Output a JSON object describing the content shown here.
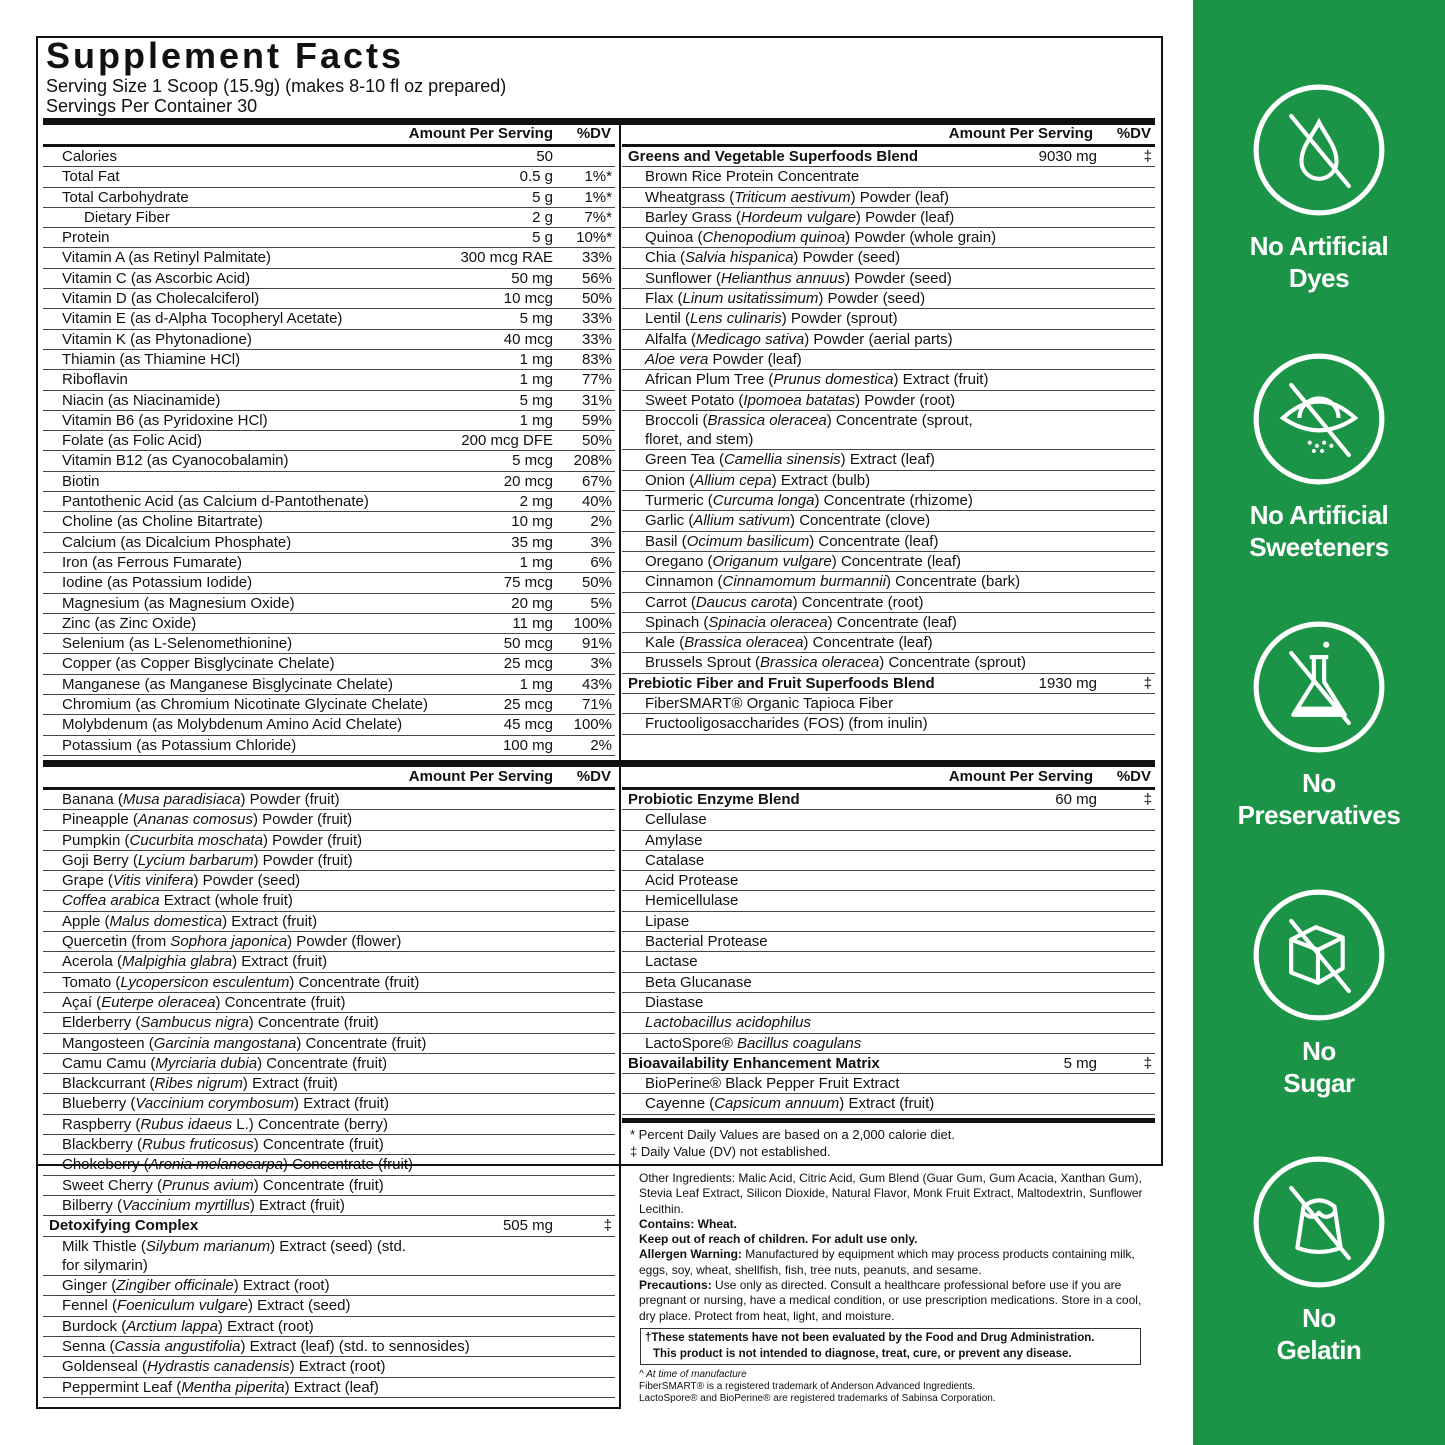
{
  "title": "Supplement Facts",
  "serving_size": "Serving Size 1 Scoop (15.9g) (makes 8-10 fl oz prepared)",
  "servings_per_container": "Servings Per Container 30",
  "header": {
    "amount": "Amount Per Serving",
    "dv": "%DV"
  },
  "tl": {
    "rows": [
      {
        "n": [
          "Calories"
        ],
        "a": "50",
        "d": ""
      },
      {
        "n": [
          "Total Fat"
        ],
        "a": "0.5 g",
        "d": "1%*"
      },
      {
        "n": [
          "Total Carbohydrate"
        ],
        "a": "5 g",
        "d": "1%*"
      },
      {
        "n": [
          "Dietary Fiber"
        ],
        "a": "2 g",
        "d": "7%*",
        "ind2": true
      },
      {
        "n": [
          "Protein"
        ],
        "a": "5 g",
        "d": "10%*"
      },
      {
        "n": [
          "Vitamin A (as Retinyl Palmitate)"
        ],
        "a": "300 mcg RAE",
        "d": "33%"
      },
      {
        "n": [
          "Vitamin C (as Ascorbic Acid)"
        ],
        "a": "50 mg",
        "d": "56%"
      },
      {
        "n": [
          "Vitamin D (as Cholecalciferol)"
        ],
        "a": "10 mcg",
        "d": "50%"
      },
      {
        "n": [
          "Vitamin E (as d-Alpha Tocopheryl Acetate)"
        ],
        "a": "5 mg",
        "d": "33%"
      },
      {
        "n": [
          "Vitamin K (as Phytonadione)"
        ],
        "a": "40 mcg",
        "d": "33%"
      },
      {
        "n": [
          "Thiamin (as Thiamine HCl)"
        ],
        "a": "1 mg",
        "d": "83%"
      },
      {
        "n": [
          "Riboflavin"
        ],
        "a": "1 mg",
        "d": "77%"
      },
      {
        "n": [
          "Niacin (as Niacinamide)"
        ],
        "a": "5 mg",
        "d": "31%"
      },
      {
        "n": [
          "Vitamin B6 (as Pyridoxine HCl)"
        ],
        "a": "1 mg",
        "d": "59%"
      },
      {
        "n": [
          "Folate (as Folic Acid)"
        ],
        "a": "200 mcg DFE",
        "d": "50%"
      },
      {
        "n": [
          "Vitamin B12 (as Cyanocobalamin)"
        ],
        "a": "5 mcg",
        "d": "208%"
      },
      {
        "n": [
          "Biotin"
        ],
        "a": "20 mcg",
        "d": "67%"
      },
      {
        "n": [
          "Pantothenic Acid (as Calcium d-Pantothenate)"
        ],
        "a": "2 mg",
        "d": "40%"
      },
      {
        "n": [
          "Choline (as Choline Bitartrate)"
        ],
        "a": "10 mg",
        "d": "2%"
      },
      {
        "n": [
          "Calcium (as Dicalcium Phosphate)"
        ],
        "a": "35 mg",
        "d": "3%"
      },
      {
        "n": [
          "Iron (as Ferrous Fumarate)"
        ],
        "a": "1 mg",
        "d": "6%"
      },
      {
        "n": [
          "Iodine (as Potassium Iodide)"
        ],
        "a": "75 mcg",
        "d": "50%"
      },
      {
        "n": [
          "Magnesium (as Magnesium Oxide)"
        ],
        "a": "20 mg",
        "d": "5%"
      },
      {
        "n": [
          "Zinc (as Zinc Oxide)"
        ],
        "a": "11 mg",
        "d": "100%"
      },
      {
        "n": [
          "Selenium (as L-Selenomethionine)"
        ],
        "a": "50 mcg",
        "d": "91%"
      },
      {
        "n": [
          "Copper (as Copper Bisglycinate Chelate)"
        ],
        "a": "25 mcg",
        "d": "3%"
      },
      {
        "n": [
          "Manganese (as Manganese Bisglycinate Chelate)"
        ],
        "a": "1 mg",
        "d": "43%"
      },
      {
        "n": [
          "Chromium (as Chromium Nicotinate Glycinate Chelate)"
        ],
        "a": "25 mcg",
        "d": "71%"
      },
      {
        "n": [
          "Molybdenum (as Molybdenum Amino Acid Chelate)"
        ],
        "a": "45 mcg",
        "d": "100%"
      },
      {
        "n": [
          "Potassium (as Potassium Chloride)"
        ],
        "a": "100 mg",
        "d": "2%"
      }
    ]
  },
  "tr": {
    "rows": [
      {
        "n": [
          "Greens and Vegetable Superfoods Blend"
        ],
        "a": "9030 mg",
        "d": "‡",
        "blend": true
      },
      {
        "n": [
          "Brown Rice Protein Concentrate"
        ]
      },
      {
        "n": [
          "Wheatgrass (",
          "Triticum aestivum",
          ") Powder (leaf)"
        ]
      },
      {
        "n": [
          "Barley Grass (",
          "Hordeum vulgare",
          ") Powder (leaf)"
        ]
      },
      {
        "n": [
          "Quinoa (",
          "Chenopodium quinoa",
          ") Powder (whole grain)"
        ]
      },
      {
        "n": [
          "Chia (",
          "Salvia hispanica",
          ") Powder (seed)"
        ]
      },
      {
        "n": [
          "Sunflower (",
          "Helianthus annuus",
          ") Powder (seed)"
        ]
      },
      {
        "n": [
          "Flax (",
          "Linum usitatissimum",
          ") Powder (seed)"
        ]
      },
      {
        "n": [
          "Lentil (",
          "Lens culinaris",
          ") Powder (sprout)"
        ]
      },
      {
        "n": [
          "Alfalfa (",
          "Medicago sativa",
          ") Powder (aerial parts)"
        ]
      },
      {
        "n": [
          "",
          "Aloe vera",
          " Powder (leaf)"
        ]
      },
      {
        "n": [
          "African Plum Tree (",
          "Prunus domestica",
          ") Extract (fruit)"
        ]
      },
      {
        "n": [
          "Sweet Potato (",
          "Ipomoea batatas",
          ") Powder (root)"
        ]
      },
      {
        "n": [
          "Broccoli (",
          "Brassica oleracea",
          ") Concentrate (sprout, floret, and stem)"
        ],
        "wrap": true
      },
      {
        "n": [
          "Green Tea (",
          "Camellia sinensis",
          ") Extract (leaf)"
        ]
      },
      {
        "n": [
          "Onion (",
          "Allium cepa",
          ") Extract (bulb)"
        ]
      },
      {
        "n": [
          "Turmeric (",
          "Curcuma longa",
          ") Concentrate (rhizome)"
        ]
      },
      {
        "n": [
          "Garlic (",
          "Allium sativum",
          ") Concentrate (clove)"
        ]
      },
      {
        "n": [
          "Basil (",
          "Ocimum basilicum",
          ") Concentrate (leaf)"
        ]
      },
      {
        "n": [
          "Oregano (",
          "Origanum vulgare",
          ") Concentrate (leaf)"
        ]
      },
      {
        "n": [
          "Cinnamon (",
          "Cinnamomum burmannii",
          ") Concentrate (bark)"
        ]
      },
      {
        "n": [
          "Carrot (",
          "Daucus carota",
          ") Concentrate (root)"
        ]
      },
      {
        "n": [
          "Spinach (",
          "Spinacia oleracea",
          ") Concentrate (leaf)"
        ]
      },
      {
        "n": [
          "Kale (",
          "Brassica oleracea",
          ") Concentrate (leaf)"
        ]
      },
      {
        "n": [
          "Brussels Sprout (",
          "Brassica oleracea",
          ") Concentrate (sprout)"
        ]
      },
      {
        "n": [
          "Prebiotic Fiber and Fruit Superfoods Blend"
        ],
        "a": "1930 mg",
        "d": "‡",
        "blend": true
      },
      {
        "n": [
          "FiberSMART® Organic Tapioca Fiber"
        ]
      },
      {
        "n": [
          "Fructooligosaccharides (FOS) (from inulin)"
        ]
      }
    ]
  },
  "bl": {
    "rows": [
      {
        "n": [
          "Banana (",
          "Musa paradisiaca",
          ") Powder (fruit)"
        ]
      },
      {
        "n": [
          "Pineapple (",
          "Ananas comosus",
          ") Powder (fruit)"
        ]
      },
      {
        "n": [
          "Pumpkin (",
          "Cucurbita moschata",
          ") Powder (fruit)"
        ]
      },
      {
        "n": [
          "Goji Berry (",
          "Lycium barbarum",
          ") Powder (fruit)"
        ]
      },
      {
        "n": [
          "Grape (",
          "Vitis vinifera",
          ") Powder (seed)"
        ]
      },
      {
        "n": [
          "",
          "Coffea arabica",
          " Extract (whole fruit)"
        ]
      },
      {
        "n": [
          "Apple (",
          "Malus domestica",
          ") Extract (fruit)"
        ]
      },
      {
        "n": [
          "Quercetin (from ",
          "Sophora japonica",
          ") Powder (flower)"
        ]
      },
      {
        "n": [
          "Acerola (",
          "Malpighia glabra",
          ") Extract (fruit)"
        ]
      },
      {
        "n": [
          "Tomato (",
          "Lycopersicon esculentum",
          ") Concentrate (fruit)"
        ]
      },
      {
        "n": [
          "Açaí (",
          "Euterpe oleracea",
          ") Concentrate (fruit)"
        ]
      },
      {
        "n": [
          "Elderberry (",
          "Sambucus nigra",
          ") Concentrate (fruit)"
        ]
      },
      {
        "n": [
          "Mangosteen (",
          "Garcinia mangostana",
          ") Concentrate (fruit)"
        ]
      },
      {
        "n": [
          "Camu Camu (",
          "Myrciaria dubia",
          ") Concentrate (fruit)"
        ]
      },
      {
        "n": [
          "Blackcurrant (",
          "Ribes nigrum",
          ") Extract (fruit)"
        ]
      },
      {
        "n": [
          "Blueberry (",
          "Vaccinium corymbosum",
          ") Extract (fruit)"
        ]
      },
      {
        "n": [
          "Raspberry (",
          "Rubus idaeus",
          " L.) Concentrate (berry)"
        ]
      },
      {
        "n": [
          "Blackberry (",
          "Rubus fruticosus",
          ") Concentrate (fruit)"
        ]
      },
      {
        "n": [
          "Chokeberry (",
          "Aronia melanocarpa",
          ") Concentrate (fruit)"
        ]
      },
      {
        "n": [
          "Sweet Cherry (",
          "Prunus avium",
          ") Concentrate (fruit)"
        ]
      },
      {
        "n": [
          "Bilberry (",
          "Vaccinium myrtillus",
          ") Extract (fruit)"
        ]
      },
      {
        "n": [
          "Detoxifying Complex"
        ],
        "a": "505 mg",
        "d": "‡",
        "blend": true
      },
      {
        "n": [
          "Milk Thistle (",
          "Silybum marianum",
          ") Extract (seed) (std. for silymarin)"
        ],
        "wrap": true
      },
      {
        "n": [
          "Ginger (",
          "Zingiber officinale",
          ") Extract (root)"
        ]
      },
      {
        "n": [
          "Fennel (",
          "Foeniculum vulgare",
          ") Extract (seed)"
        ]
      },
      {
        "n": [
          "Burdock (",
          "Arctium lappa",
          ") Extract (root)"
        ]
      },
      {
        "n": [
          "Senna (",
          "Cassia angustifolia",
          ") Extract (leaf) (std. to sennosides)"
        ]
      },
      {
        "n": [
          "Goldenseal (",
          "Hydrastis canadensis",
          ") Extract (root)"
        ]
      },
      {
        "n": [
          "Peppermint Leaf (",
          "Mentha piperita",
          ") Extract (leaf)"
        ]
      }
    ]
  },
  "br": {
    "rows": [
      {
        "n": [
          "Probiotic Enzyme Blend"
        ],
        "a": "60 mg",
        "d": "‡",
        "blend": true
      },
      {
        "n": [
          "Cellulase"
        ]
      },
      {
        "n": [
          "Amylase"
        ]
      },
      {
        "n": [
          "Catalase"
        ]
      },
      {
        "n": [
          "Acid Protease"
        ]
      },
      {
        "n": [
          "Hemicellulase"
        ]
      },
      {
        "n": [
          "Lipase"
        ]
      },
      {
        "n": [
          "Bacterial Protease"
        ]
      },
      {
        "n": [
          "Lactase"
        ]
      },
      {
        "n": [
          "Beta Glucanase"
        ]
      },
      {
        "n": [
          "Diastase"
        ]
      },
      {
        "n": [
          "",
          "Lactobacillus acidophilus"
        ]
      },
      {
        "n": [
          "LactoSpore® ",
          "Bacillus coagulans"
        ]
      },
      {
        "n": [
          "Bioavailability Enhancement Matrix"
        ],
        "a": "5 mg",
        "d": "‡",
        "blend": true
      },
      {
        "n": [
          "BioPerine® Black Pepper Fruit Extract"
        ]
      },
      {
        "n": [
          "Cayenne (",
          "Capsicum annuum",
          ") Extract (fruit)"
        ]
      }
    ]
  },
  "footnotes": {
    "dv_note": "* Percent Daily Values are based on a 2,000 calorie diet.",
    "dagger_note": "‡ Daily Value (DV) not established."
  },
  "other": {
    "ingredients": "Other Ingredients: Malic Acid, Citric Acid, Gum Blend (Guar Gum, Gum Acacia, Xanthan Gum), Stevia Leaf Extract, Silicon Dioxide, Natural Flavor, Monk Fruit Extract, Maltodextrin, Sunflower Lecithin.",
    "contains": "Contains: Wheat.",
    "keep_out": "Keep out of reach of children. For adult use only.",
    "allergen_label": "Allergen Warning:",
    "allergen_text": " Manufactured by equipment which may process products containing milk, eggs, soy, wheat, shellfish, fish, tree nuts, peanuts, and sesame.",
    "precautions_label": "Precautions:",
    "precautions_text": " Use only as directed. Consult a healthcare professional before use if you are pregnant or nursing, have a medical condition, or use prescription medications. Store in a cool, dry place. Protect from heat, light, and moisture.",
    "disclaimer_1": "†These statements have not been evaluated by the Food and Drug Administration.",
    "disclaimer_2": "This product is not intended to diagnose, treat, cure, or prevent any disease.",
    "note_manufacture": "^ At time of manufacture",
    "note_fibersmart": "FiberSMART® is a registered trademark of Anderson Advanced Ingredients.",
    "note_sabinsa": "LactoSpore® and BioPerine® are registered trademarks of Sabinsa Corporation."
  },
  "badges": [
    {
      "icon": "no-dyes-icon",
      "line1": "No Artificial",
      "line2": "Dyes"
    },
    {
      "icon": "no-sweeteners-icon",
      "line1": "No Artificial",
      "line2": "Sweeteners"
    },
    {
      "icon": "no-preservatives-icon",
      "line1": "No",
      "line2": "Preservatives"
    },
    {
      "icon": "no-sugar-icon",
      "line1": "No",
      "line2": "Sugar"
    },
    {
      "icon": "no-gelatin-icon",
      "line1": "No",
      "line2": "Gelatin"
    }
  ],
  "colors": {
    "panel_green": "#1b9448",
    "text": "#111111"
  }
}
